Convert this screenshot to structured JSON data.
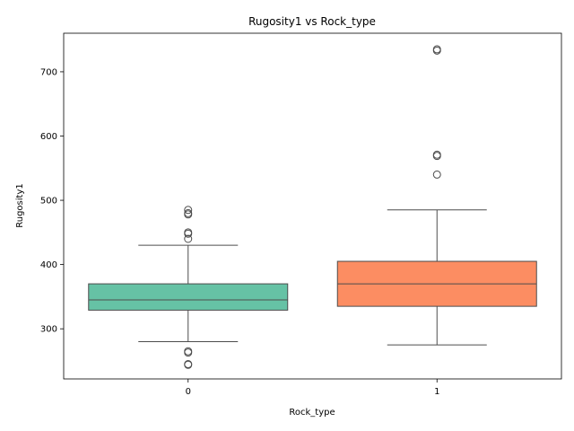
{
  "chart_data": {
    "type": "box",
    "title": "Rugosity1 vs Rock_type",
    "xlabel": "Rock_type",
    "ylabel": "Rugosity1",
    "ylim": [
      222,
      760
    ],
    "yticks": [
      300,
      400,
      500,
      600,
      700
    ],
    "grid": false,
    "categories": [
      "0",
      "1"
    ],
    "boxes": [
      {
        "category": "0",
        "color": "#66c2a5",
        "whisker_low": 280,
        "q1": 329,
        "median": 345,
        "q3": 370,
        "whisker_high": 430,
        "outliers": [
          485,
          480,
          478,
          450,
          448,
          440,
          265,
          263,
          245,
          244
        ]
      },
      {
        "category": "1",
        "color": "#fc8d62",
        "whisker_low": 275,
        "q1": 335,
        "median": 370,
        "q3": 405,
        "whisker_high": 485,
        "outliers": [
          735,
          733,
          571,
          569,
          540
        ]
      }
    ]
  }
}
